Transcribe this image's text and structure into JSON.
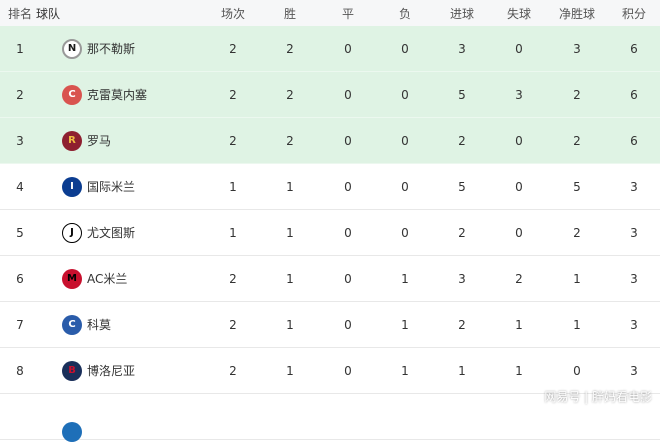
{
  "headers": [
    "排名",
    "球队",
    "场次",
    "胜",
    "平",
    "负",
    "进球",
    "失球",
    "净胜球",
    "积分"
  ],
  "rows": [
    {
      "rank": "1",
      "team": "那不勒斯",
      "logo": "napoli-logo",
      "p": "2",
      "w": "2",
      "d": "0",
      "l": "0",
      "gf": "3",
      "ga": "0",
      "gd": "3",
      "pts": "6",
      "top": true
    },
    {
      "rank": "2",
      "team": "克雷莫内塞",
      "logo": "cremonese-logo",
      "p": "2",
      "w": "2",
      "d": "0",
      "l": "0",
      "gf": "5",
      "ga": "3",
      "gd": "2",
      "pts": "6",
      "top": true
    },
    {
      "rank": "3",
      "team": "罗马",
      "logo": "roma-logo",
      "p": "2",
      "w": "2",
      "d": "0",
      "l": "0",
      "gf": "2",
      "ga": "0",
      "gd": "2",
      "pts": "6",
      "top": true
    },
    {
      "rank": "4",
      "team": "国际米兰",
      "logo": "inter-logo",
      "p": "1",
      "w": "1",
      "d": "0",
      "l": "0",
      "gf": "5",
      "ga": "0",
      "gd": "5",
      "pts": "3"
    },
    {
      "rank": "5",
      "team": "尤文图斯",
      "logo": "juventus-logo",
      "p": "1",
      "w": "1",
      "d": "0",
      "l": "0",
      "gf": "2",
      "ga": "0",
      "gd": "2",
      "pts": "3"
    },
    {
      "rank": "6",
      "team": "AC米兰",
      "logo": "ac-milan-logo",
      "p": "2",
      "w": "1",
      "d": "0",
      "l": "1",
      "gf": "3",
      "ga": "2",
      "gd": "1",
      "pts": "3"
    },
    {
      "rank": "7",
      "team": "科莫",
      "logo": "como-logo",
      "p": "2",
      "w": "1",
      "d": "0",
      "l": "1",
      "gf": "2",
      "ga": "1",
      "gd": "1",
      "pts": "3"
    },
    {
      "rank": "8",
      "team": "博洛尼亚",
      "logo": "bologna-logo",
      "p": "2",
      "w": "1",
      "d": "0",
      "l": "1",
      "gf": "1",
      "ga": "1",
      "gd": "0",
      "pts": "3"
    }
  ],
  "watermark": "网易号 | 胖妈看电影",
  "colors": {
    "top_row_bg": "#dff3e4",
    "header_bg": "#f6f7f8"
  }
}
